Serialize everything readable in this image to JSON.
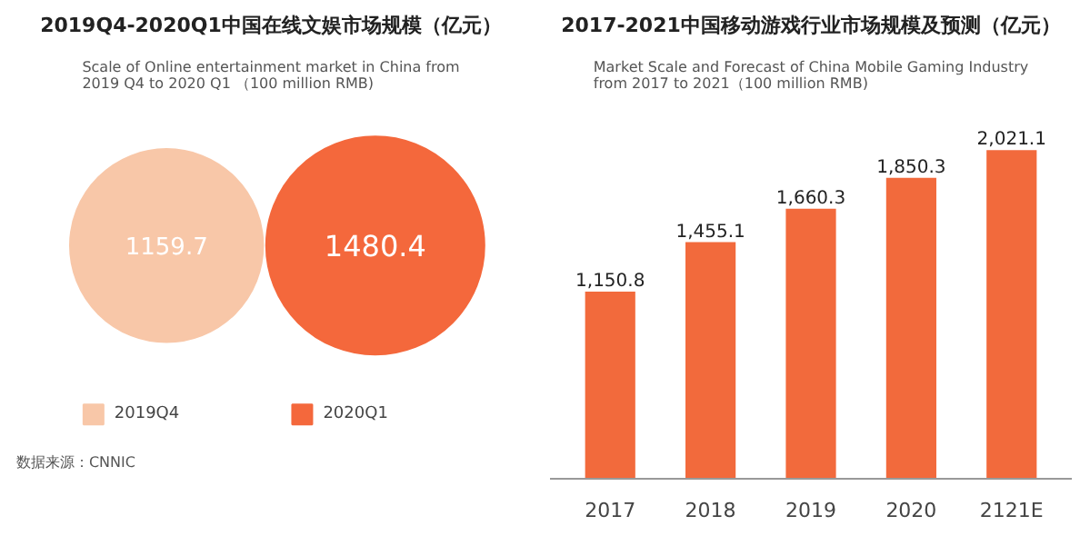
{
  "chart_data": [
    {
      "type": "other",
      "title": "2019Q4-2020Q1中国在线文娱市场规模（亿元）",
      "subtitle": "Scale of Online entertainment market in China from\n2019 Q4 to 2020 Q1 （100 million RMB)",
      "categories": [
        "2019Q4",
        "2020Q1"
      ],
      "values": [
        1159.7,
        1480.4
      ],
      "colors": [
        "#f8c7a8",
        "#f4683c"
      ],
      "data_labels": true,
      "annotations": [
        "数据来源：CNNIC"
      ]
    },
    {
      "type": "bar",
      "title": "2017-2021中国移动游戏行业市场规模及预测（亿元）",
      "subtitle": "Market Scale and Forecast of China Mobile Gaming Industry\nfrom 2017 to 2021（100 million RMB)",
      "categories": [
        "2017",
        "2018",
        "2019",
        "2020",
        "2121E"
      ],
      "values": [
        1150.8,
        1455.1,
        1660.3,
        1850.3,
        2021.1
      ],
      "color": "#f26a3c",
      "value_labels": [
        "1,150.8",
        "1,455.1",
        "1,660.3",
        "1,850.3",
        "2,021.1"
      ]
    }
  ]
}
